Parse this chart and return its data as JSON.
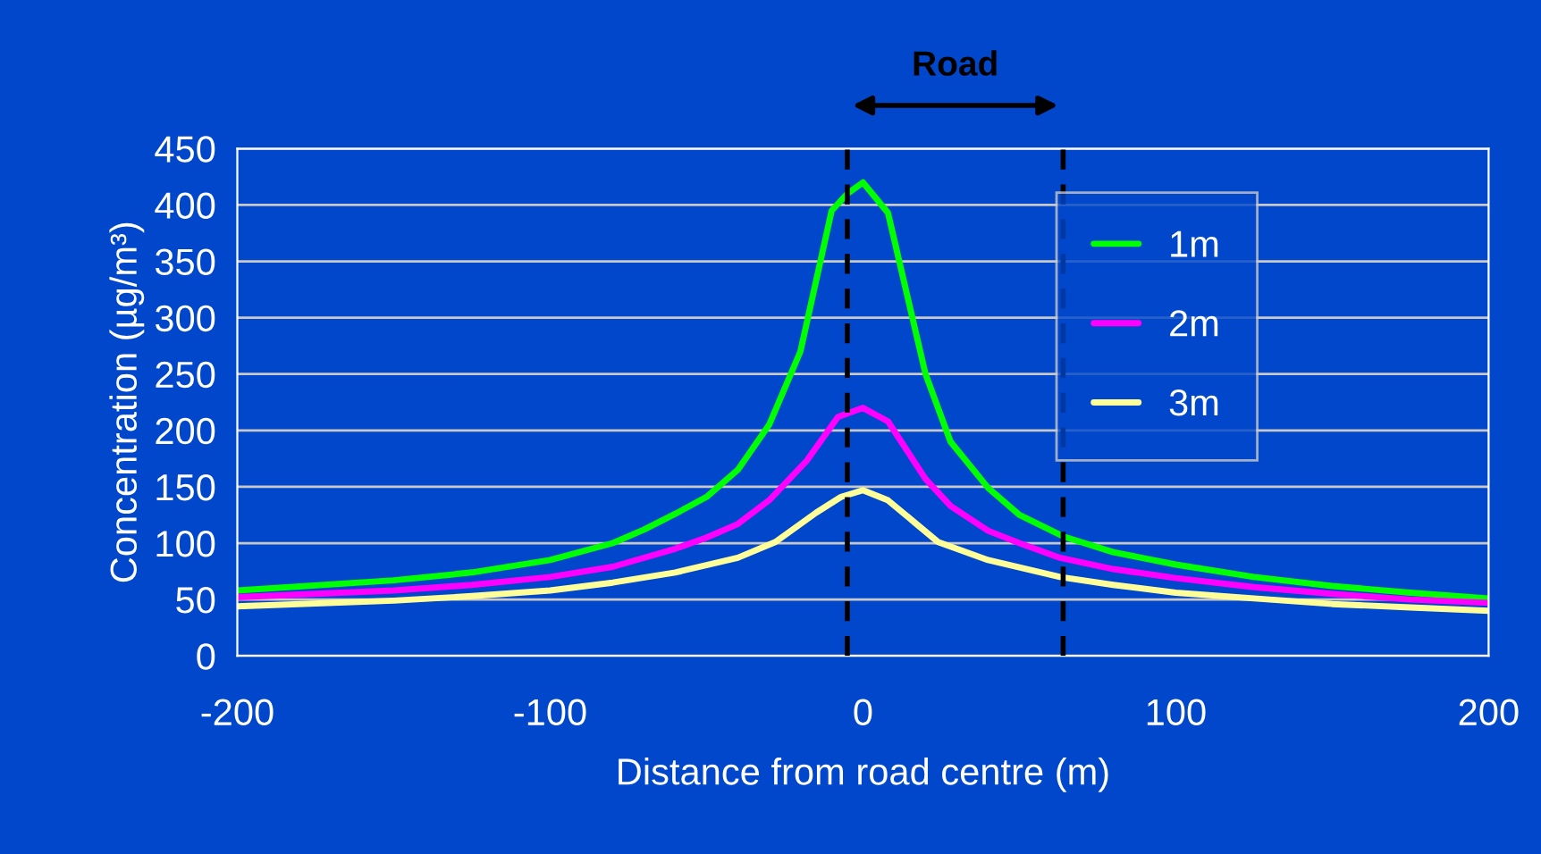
{
  "chart_data": {
    "type": "line",
    "xlabel": "Distance from road centre (m)",
    "ylabel": "Concentration (µg/m³)",
    "annotations": [
      "Road"
    ],
    "xlim": [
      -200,
      200
    ],
    "xticks": [
      -200,
      -100,
      0,
      100,
      200
    ],
    "ylim": [
      0,
      450
    ],
    "yticks": [
      0,
      50,
      100,
      150,
      200,
      250,
      300,
      350,
      400,
      450
    ],
    "grid": "y",
    "legend": "top right",
    "ref_lines": [
      {
        "axis": "x",
        "value": -5,
        "color": "#000000",
        "line_style": "dashed"
      },
      {
        "axis": "x",
        "value": 64,
        "color": "#000000",
        "line_style": "dashed"
      }
    ],
    "series": [
      {
        "name": "1m",
        "color": "#00ff00",
        "x": [
          -200,
          -150,
          -125,
          -100,
          -80,
          -70,
          -60,
          -50,
          -40,
          -30,
          -20,
          -10,
          -5,
          0,
          8,
          20,
          28,
          40,
          50,
          64,
          80,
          100,
          125,
          150,
          175,
          200
        ],
        "values": [
          58,
          67,
          74,
          85,
          100,
          112,
          126,
          141,
          165,
          205,
          270,
          395,
          410,
          420,
          393,
          250,
          190,
          149,
          125,
          106,
          92,
          81,
          70,
          62,
          56,
          51
        ]
      },
      {
        "name": "2m",
        "color": "#ff00ff",
        "x": [
          -200,
          -150,
          -125,
          -100,
          -80,
          -60,
          -50,
          -40,
          -30,
          -18,
          -8,
          0,
          8,
          20,
          28,
          40,
          50,
          63,
          80,
          100,
          125,
          150,
          175,
          200
        ],
        "values": [
          52,
          58,
          63,
          70,
          79,
          95,
          105,
          117,
          138,
          173,
          212,
          220,
          208,
          157,
          133,
          111,
          100,
          87,
          77,
          69,
          61,
          55,
          50,
          47
        ]
      },
      {
        "name": "3m",
        "color": "#ffff99",
        "x": [
          -200,
          -150,
          -125,
          -100,
          -80,
          -60,
          -40,
          -28,
          -15,
          -7,
          0,
          8,
          24,
          40,
          63,
          80,
          100,
          125,
          150,
          175,
          200
        ],
        "values": [
          44,
          49,
          53,
          58,
          65,
          74,
          87,
          101,
          127,
          141,
          147,
          138,
          101,
          85,
          70,
          63,
          56,
          51,
          46,
          43,
          40
        ]
      }
    ]
  }
}
